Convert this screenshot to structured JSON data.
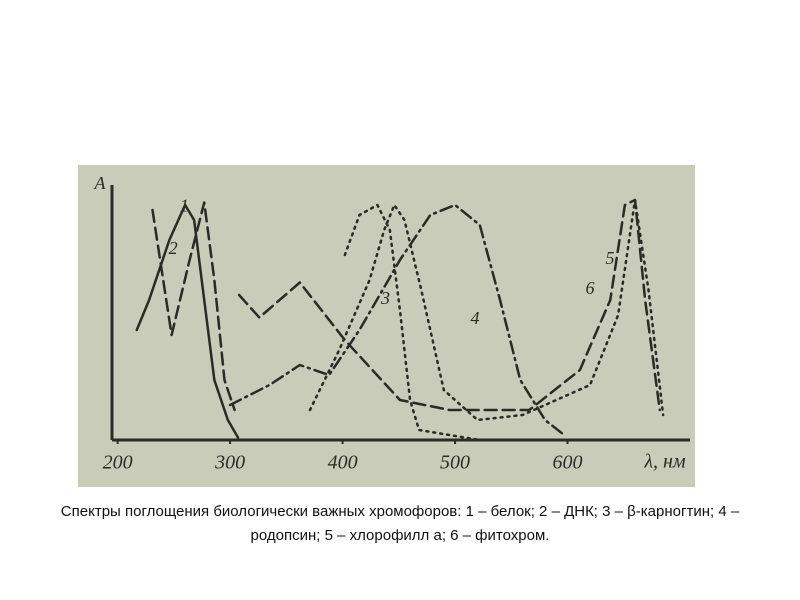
{
  "chart_data": {
    "type": "line",
    "y_label": "A",
    "x_label": "λ, нм",
    "caption": "Спектры поглощения биологически важных хромофоров: 1 – белок; 2 – ДНК; 3 – β-карногтин; 4 – родопсин; 5 – хлорофилл а; 6 – фитохром.",
    "xlim": [
      195,
      700
    ],
    "ylim": [
      0,
      1.05
    ],
    "xticks": [
      200,
      300,
      400,
      500,
      600
    ],
    "series": [
      {
        "name": "1",
        "color": "#2b2b26",
        "dash": "dashed",
        "x": [
          231,
          248,
          264,
          277,
          286,
          295,
          304
        ],
        "values": [
          0.92,
          0.42,
          0.72,
          0.95,
          0.64,
          0.24,
          0.12
        ]
      },
      {
        "name": "2",
        "color": "#2b2b26",
        "dash": "solid",
        "x": [
          217,
          228,
          246,
          260,
          268,
          277,
          286,
          298,
          307
        ],
        "values": [
          0.44,
          0.56,
          0.8,
          0.94,
          0.88,
          0.56,
          0.24,
          0.08,
          0.01
        ]
      },
      {
        "name": "3",
        "color": "#2b2b26",
        "dash": "dotted",
        "x": [
          402,
          415,
          431,
          442,
          451,
          460,
          468,
          495,
          522
        ],
        "values": [
          0.74,
          0.9,
          0.94,
          0.84,
          0.52,
          0.16,
          0.04,
          0.02,
          0.0
        ]
      },
      {
        "name": "4",
        "color": "#2b2b26",
        "dash": "dashdot",
        "x": [
          300,
          335,
          362,
          388,
          415,
          451,
          478,
          500,
          522,
          540,
          558,
          580,
          597
        ],
        "values": [
          0.14,
          0.22,
          0.3,
          0.26,
          0.44,
          0.72,
          0.9,
          0.94,
          0.86,
          0.56,
          0.24,
          0.08,
          0.02
        ]
      },
      {
        "name": "5",
        "color": "#2b2b26",
        "dash": "dotted",
        "x": [
          371,
          397,
          424,
          437,
          446,
          455,
          470,
          490,
          520,
          560,
          600,
          620,
          645,
          660,
          672,
          685
        ],
        "values": [
          0.12,
          0.36,
          0.64,
          0.84,
          0.94,
          0.88,
          0.6,
          0.2,
          0.08,
          0.1,
          0.18,
          0.22,
          0.5,
          0.96,
          0.6,
          0.1
        ]
      },
      {
        "name": "6",
        "color": "#2b2b26",
        "dash": "dashed",
        "x": [
          308,
          326,
          362,
          402,
          451,
          495,
          566,
          611,
          638,
          651,
          660,
          669,
          682
        ],
        "values": [
          0.58,
          0.49,
          0.63,
          0.4,
          0.16,
          0.12,
          0.12,
          0.28,
          0.56,
          0.94,
          0.96,
          0.56,
          0.12
        ]
      }
    ]
  }
}
